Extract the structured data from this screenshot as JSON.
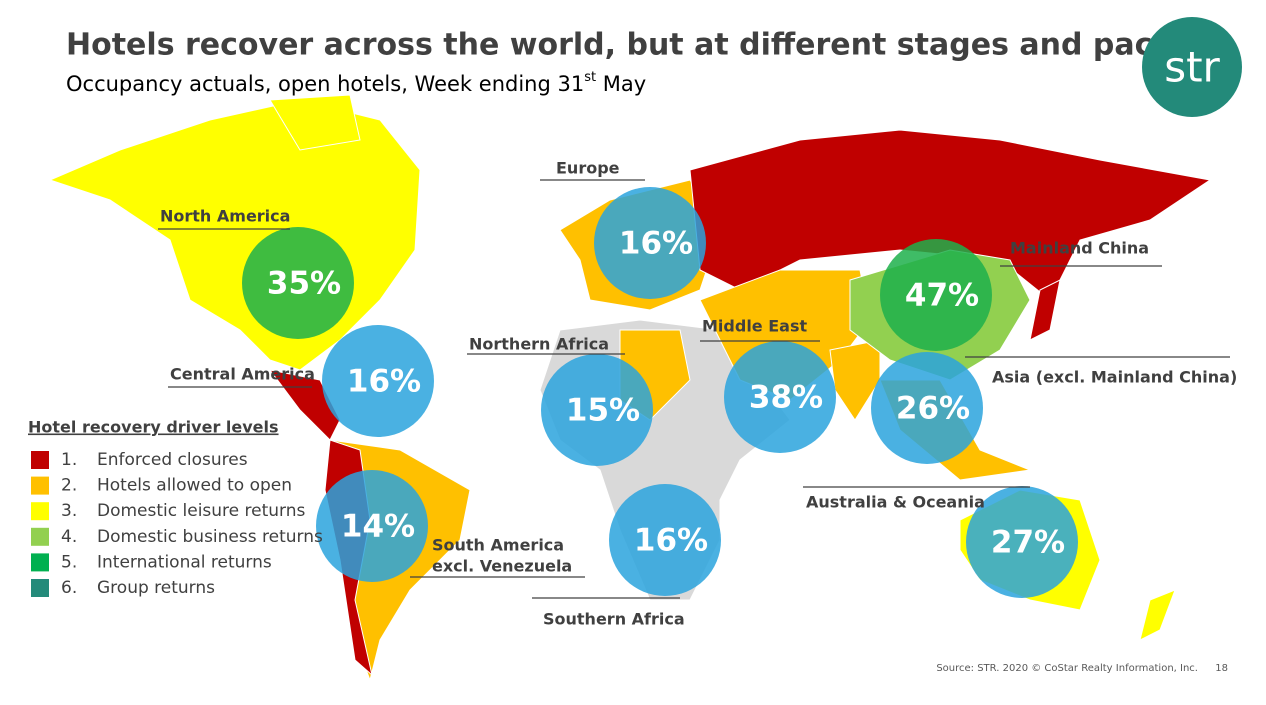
{
  "header": {
    "title": "Hotels recover across the world, but at different stages and pace",
    "subtitle": [
      "Occupancy actuals, open hotels, Week ending 31",
      "st",
      " May"
    ],
    "logo": "str"
  },
  "regions": [
    {
      "label": [
        "North America"
      ],
      "occupancy": "35%",
      "color": "#1db04b"
    },
    {
      "label": [
        "Central America"
      ],
      "occupancy": "16%",
      "color": "#2aa3dd"
    },
    {
      "label": [
        "South America",
        "excl. Venezuela"
      ],
      "occupancy": "14%",
      "color": "#2aa3dd"
    },
    {
      "label": [
        "Northern Africa"
      ],
      "occupancy": "15%",
      "color": "#2aa3dd"
    },
    {
      "label": [
        "Europe"
      ],
      "occupancy": "16%",
      "color": "#2aa3dd"
    },
    {
      "label": [
        "Southern Africa"
      ],
      "occupancy": "16%",
      "color": "#2aa3dd"
    },
    {
      "label": [
        "Middle East"
      ],
      "occupancy": "38%",
      "color": "#2aa3dd"
    },
    {
      "label": [
        "Mainland China"
      ],
      "occupancy": "47%",
      "color": "#1db04b"
    },
    {
      "label": [
        "Asia (excl. Mainland China)"
      ],
      "occupancy": "26%",
      "color": "#2aa3dd"
    },
    {
      "label": [
        "Australia & Oceania"
      ],
      "occupancy": "27%",
      "color": "#2aa3dd"
    }
  ],
  "legend": {
    "title": "Hotel recovery driver levels",
    "items": [
      {
        "number": "1.",
        "text": "Enforced closures",
        "color": "#c00000"
      },
      {
        "number": "2.",
        "text": "Hotels allowed to open",
        "color": "#ffc000"
      },
      {
        "number": "3.",
        "text": "Domestic leisure returns",
        "color": "#ffff00"
      },
      {
        "number": "4.",
        "text": "Domestic business returns",
        "color": "#92d050"
      },
      {
        "number": "5.",
        "text": "International returns",
        "color": "#00b050"
      },
      {
        "number": "6.",
        "text": "Group returns",
        "color": "#238a7a"
      }
    ]
  },
  "footer": {
    "source": "Source: STR. 2020 © CoStar Realty Information, Inc.",
    "page": "18"
  }
}
